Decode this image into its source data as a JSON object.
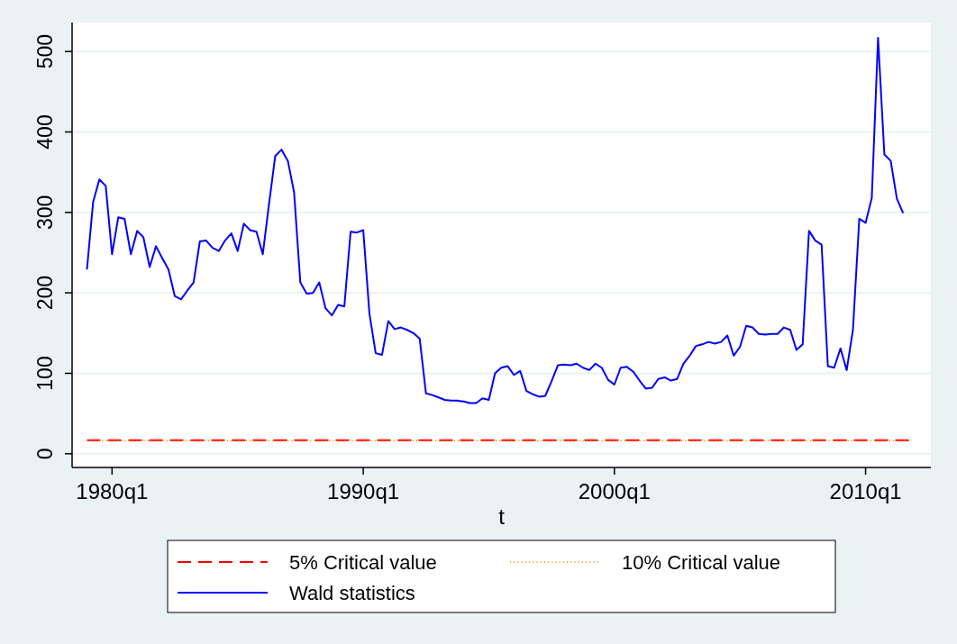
{
  "chart_data": {
    "type": "line",
    "xlabel": "t",
    "x": [
      "1979-01",
      "1979-04",
      "1979-07",
      "1979-10",
      "1980-01",
      "1980-04",
      "1980-07",
      "1980-10",
      "1981-01",
      "1981-04",
      "1981-07",
      "1981-10",
      "1982-01",
      "1982-04",
      "1982-07",
      "1982-10",
      "1983-01",
      "1983-04",
      "1983-07",
      "1983-10",
      "1984-01",
      "1984-04",
      "1984-07",
      "1984-10",
      "1985-01",
      "1985-04",
      "1985-07",
      "1985-10",
      "1986-01",
      "1986-04",
      "1986-07",
      "1986-10",
      "1987-01",
      "1987-04",
      "1987-07",
      "1987-10",
      "1988-01",
      "1988-04",
      "1988-07",
      "1988-10",
      "1989-01",
      "1989-04",
      "1989-07",
      "1989-10",
      "1990-01",
      "1990-04",
      "1990-07",
      "1990-10",
      "1991-01",
      "1991-04",
      "1991-07",
      "1991-10",
      "1992-01",
      "1992-04",
      "1992-07",
      "1992-10",
      "1993-01",
      "1993-04",
      "1993-07",
      "1993-10",
      "1994-01",
      "1994-04",
      "1994-07",
      "1994-10",
      "1995-01",
      "1995-04",
      "1995-07",
      "1995-10",
      "1996-01",
      "1996-04",
      "1996-07",
      "1996-10",
      "1997-01",
      "1997-04",
      "1997-07",
      "1997-10",
      "1998-01",
      "1998-04",
      "1998-07",
      "1998-10",
      "1999-01",
      "1999-04",
      "1999-07",
      "1999-10",
      "2000-01",
      "2000-04",
      "2000-07",
      "2000-10",
      "2001-01",
      "2001-04",
      "2001-07",
      "2001-10",
      "2002-01",
      "2002-04",
      "2002-07",
      "2002-10",
      "2003-01",
      "2003-04",
      "2003-07",
      "2003-10",
      "2004-01",
      "2004-04",
      "2004-07",
      "2004-10",
      "2005-01",
      "2005-04",
      "2005-07",
      "2005-10",
      "2006-01",
      "2006-04",
      "2006-07",
      "2006-10",
      "2007-01",
      "2007-04",
      "2007-07",
      "2007-10",
      "2008-01",
      "2008-04",
      "2008-07",
      "2008-10",
      "2009-01",
      "2009-04",
      "2009-07",
      "2009-10",
      "2010-01",
      "2010-04",
      "2010-07",
      "2010-10",
      "2011-01",
      "2011-04",
      "2011-07"
    ],
    "xlim": [
      "1978-05-30",
      "2012-08-07"
    ],
    "xticks": [
      {
        "value": "1980-01",
        "label": "1980q1"
      },
      {
        "value": "1990-01",
        "label": "1990q1"
      },
      {
        "value": "2000-01",
        "label": "2000q1"
      },
      {
        "value": "2010-01",
        "label": "2010q1"
      }
    ],
    "ylim": [
      -17,
      536
    ],
    "yticks": [
      0,
      100,
      200,
      300,
      400,
      500
    ],
    "grid": "y",
    "legend": "bottom",
    "series": [
      {
        "name": "5% Critical value",
        "color": "#ff0000",
        "line_style": "dashed",
        "x": [
          "1979-01",
          "2011-10"
        ],
        "values": [
          17,
          17
        ]
      },
      {
        "name": "10% Critical value",
        "color": "#ff8c00",
        "line_style": "dotted",
        "x": [
          "1979-01",
          "2011-10"
        ],
        "values": [
          16,
          16
        ]
      },
      {
        "name": "Wald statistics",
        "color": "#0000ff",
        "line_style": "solid",
        "values": [
          229,
          313,
          341,
          333,
          248,
          294,
          292,
          248,
          277,
          269,
          232,
          258,
          243,
          229,
          196,
          192,
          203,
          213,
          264,
          265,
          256,
          252,
          265,
          274,
          252,
          286,
          278,
          276,
          248,
          310,
          370,
          378,
          364,
          325,
          213,
          199,
          200,
          213,
          181,
          172,
          185,
          183,
          276,
          275,
          278,
          174,
          125,
          123,
          165,
          155,
          157,
          154,
          150,
          143,
          75,
          73,
          70,
          67,
          66,
          66,
          65,
          63,
          63,
          69,
          67,
          100,
          107,
          109,
          98,
          103,
          78,
          74,
          71,
          72,
          90,
          110,
          111,
          110,
          112,
          107,
          104,
          112,
          107,
          92,
          86,
          107,
          108,
          102,
          91,
          81,
          82,
          93,
          95,
          91,
          93,
          112,
          122,
          134,
          136,
          139,
          137,
          139,
          147,
          122,
          133,
          159,
          157,
          149,
          148,
          149,
          149,
          157,
          154,
          129,
          136,
          277,
          265,
          260,
          109,
          107,
          131,
          104,
          154,
          292,
          287,
          318,
          517,
          372,
          364,
          317,
          299
        ]
      }
    ]
  }
}
